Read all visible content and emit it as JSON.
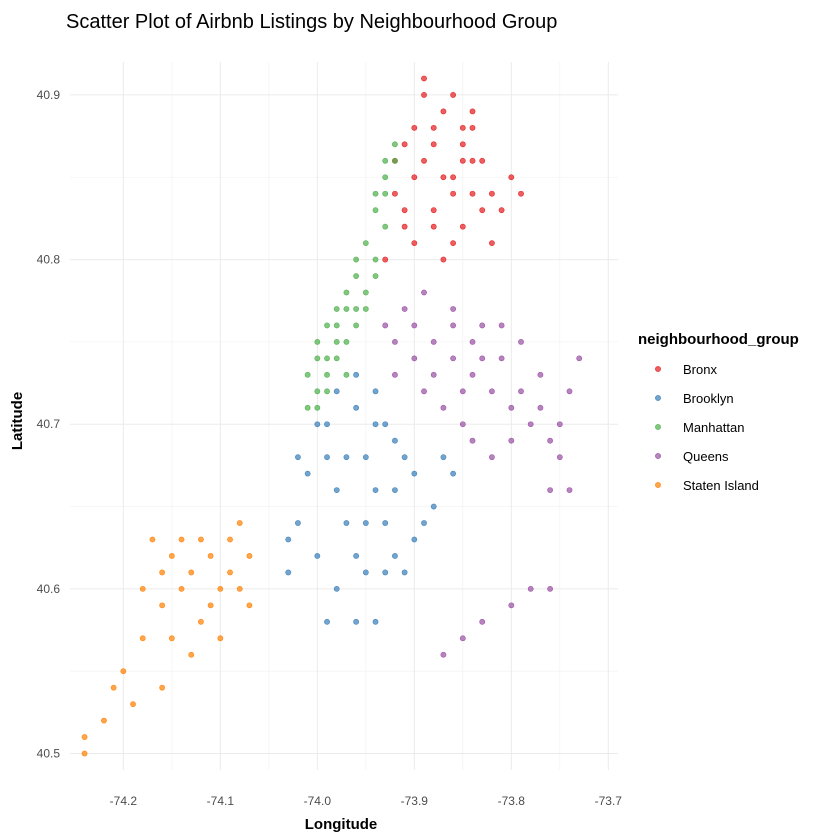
{
  "chart_data": {
    "type": "scatter",
    "title": "Scatter Plot of Airbnb Listings by Neighbourhood Group",
    "xlabel": "Longitude",
    "ylabel": "Latitude",
    "xlim": [
      -74.255,
      -73.69
    ],
    "ylim": [
      40.49,
      40.92
    ],
    "x_ticks": [
      -74.2,
      -74.1,
      -74.0,
      -73.9,
      -73.8,
      -73.7
    ],
    "x_tick_labels": [
      "-74.2",
      "-74.1",
      "-74.0",
      "-73.9",
      "-73.8",
      "-73.7"
    ],
    "y_ticks": [
      40.5,
      40.6,
      40.7,
      40.8,
      40.9
    ],
    "y_tick_labels": [
      "40.5",
      "40.6",
      "40.7",
      "40.8",
      "40.9"
    ],
    "grid": true,
    "legend": {
      "title": "neighbourhood_group",
      "position": "right"
    },
    "series": [
      {
        "name": "Bronx",
        "color": "#e41a1c",
        "points": [
          [
            -73.91,
            40.82
          ],
          [
            -73.9,
            40.85
          ],
          [
            -73.88,
            40.87
          ],
          [
            -73.87,
            40.89
          ],
          [
            -73.86,
            40.84
          ],
          [
            -73.85,
            40.88
          ],
          [
            -73.84,
            40.86
          ],
          [
            -73.83,
            40.83
          ],
          [
            -73.82,
            40.81
          ],
          [
            -73.89,
            40.9
          ],
          [
            -73.89,
            40.91
          ],
          [
            -73.86,
            40.9
          ],
          [
            -73.92,
            40.84
          ],
          [
            -73.91,
            40.87
          ],
          [
            -73.88,
            40.83
          ],
          [
            -73.85,
            40.82
          ],
          [
            -73.84,
            40.89
          ],
          [
            -73.83,
            40.86
          ],
          [
            -73.87,
            40.8
          ],
          [
            -73.9,
            40.81
          ],
          [
            -73.93,
            40.8
          ],
          [
            -73.92,
            40.86
          ],
          [
            -73.86,
            40.85
          ],
          [
            -73.85,
            40.87
          ],
          [
            -73.81,
            40.83
          ],
          [
            -73.8,
            40.85
          ],
          [
            -73.79,
            40.84
          ],
          [
            -73.88,
            40.88
          ],
          [
            -73.9,
            40.88
          ],
          [
            -73.84,
            40.88
          ],
          [
            -73.85,
            40.86
          ],
          [
            -73.89,
            40.86
          ],
          [
            -73.87,
            40.85
          ],
          [
            -73.88,
            40.82
          ],
          [
            -73.86,
            40.81
          ],
          [
            -73.82,
            40.84
          ],
          [
            -73.84,
            40.84
          ],
          [
            -73.91,
            40.83
          ]
        ]
      },
      {
        "name": "Brooklyn",
        "color": "#377eb8",
        "points": [
          [
            -74.0,
            40.7
          ],
          [
            -73.98,
            40.72
          ],
          [
            -73.96,
            40.71
          ],
          [
            -73.95,
            40.68
          ],
          [
            -73.94,
            40.66
          ],
          [
            -73.93,
            40.7
          ],
          [
            -73.92,
            40.69
          ],
          [
            -73.91,
            40.68
          ],
          [
            -73.9,
            40.67
          ],
          [
            -73.97,
            40.68
          ],
          [
            -73.99,
            40.68
          ],
          [
            -74.01,
            40.67
          ],
          [
            -74.02,
            40.64
          ],
          [
            -74.0,
            40.62
          ],
          [
            -73.98,
            40.6
          ],
          [
            -73.96,
            40.58
          ],
          [
            -73.95,
            40.61
          ],
          [
            -73.97,
            40.64
          ],
          [
            -73.95,
            40.64
          ],
          [
            -73.93,
            40.64
          ],
          [
            -73.92,
            40.62
          ],
          [
            -73.9,
            40.63
          ],
          [
            -73.88,
            40.65
          ],
          [
            -73.86,
            40.67
          ],
          [
            -73.87,
            40.68
          ],
          [
            -74.03,
            40.63
          ],
          [
            -74.03,
            40.61
          ],
          [
            -73.99,
            40.58
          ],
          [
            -73.94,
            40.72
          ],
          [
            -73.96,
            40.73
          ],
          [
            -73.94,
            40.7
          ],
          [
            -73.98,
            40.66
          ],
          [
            -73.99,
            40.7
          ],
          [
            -73.92,
            40.66
          ],
          [
            -73.89,
            40.64
          ],
          [
            -74.02,
            40.68
          ],
          [
            -73.96,
            40.62
          ],
          [
            -73.94,
            40.58
          ],
          [
            -73.91,
            40.61
          ],
          [
            -73.93,
            40.61
          ]
        ]
      },
      {
        "name": "Manhattan",
        "color": "#4daf4a",
        "points": [
          [
            -74.01,
            40.71
          ],
          [
            -74.0,
            40.72
          ],
          [
            -73.99,
            40.73
          ],
          [
            -73.98,
            40.74
          ],
          [
            -73.97,
            40.75
          ],
          [
            -73.96,
            40.77
          ],
          [
            -73.95,
            40.78
          ],
          [
            -73.94,
            40.8
          ],
          [
            -73.93,
            40.82
          ],
          [
            -73.93,
            40.85
          ],
          [
            -73.92,
            40.87
          ],
          [
            -74.0,
            40.75
          ],
          [
            -73.99,
            40.76
          ],
          [
            -73.98,
            40.77
          ],
          [
            -73.96,
            40.79
          ],
          [
            -73.95,
            40.81
          ],
          [
            -74.0,
            40.74
          ],
          [
            -73.98,
            40.76
          ],
          [
            -73.97,
            40.78
          ],
          [
            -73.94,
            40.83
          ],
          [
            -74.01,
            40.73
          ],
          [
            -73.99,
            40.72
          ],
          [
            -73.97,
            40.73
          ],
          [
            -73.96,
            40.76
          ],
          [
            -73.95,
            40.77
          ],
          [
            -73.94,
            40.79
          ],
          [
            -73.93,
            40.84
          ],
          [
            -73.92,
            40.86
          ],
          [
            -74.0,
            40.71
          ],
          [
            -73.99,
            40.74
          ],
          [
            -73.98,
            40.75
          ],
          [
            -73.97,
            40.77
          ],
          [
            -73.96,
            40.8
          ],
          [
            -73.94,
            40.84
          ],
          [
            -73.93,
            40.86
          ]
        ]
      },
      {
        "name": "Queens",
        "color": "#984ea3",
        "points": [
          [
            -73.93,
            40.76
          ],
          [
            -73.92,
            40.75
          ],
          [
            -73.9,
            40.74
          ],
          [
            -73.88,
            40.75
          ],
          [
            -73.86,
            40.74
          ],
          [
            -73.84,
            40.73
          ],
          [
            -73.82,
            40.72
          ],
          [
            -73.8,
            40.71
          ],
          [
            -73.78,
            40.7
          ],
          [
            -73.76,
            40.69
          ],
          [
            -73.75,
            40.68
          ],
          [
            -73.74,
            40.72
          ],
          [
            -73.73,
            40.74
          ],
          [
            -73.77,
            40.73
          ],
          [
            -73.79,
            40.75
          ],
          [
            -73.83,
            40.76
          ],
          [
            -73.85,
            40.7
          ],
          [
            -73.87,
            40.71
          ],
          [
            -73.89,
            40.72
          ],
          [
            -73.91,
            40.77
          ],
          [
            -73.89,
            40.78
          ],
          [
            -73.86,
            40.77
          ],
          [
            -73.81,
            40.76
          ],
          [
            -73.8,
            40.69
          ],
          [
            -73.82,
            40.68
          ],
          [
            -73.84,
            40.69
          ],
          [
            -73.76,
            40.66
          ],
          [
            -73.74,
            40.66
          ],
          [
            -73.8,
            40.59
          ],
          [
            -73.78,
            40.6
          ],
          [
            -73.76,
            40.6
          ],
          [
            -73.83,
            40.58
          ],
          [
            -73.85,
            40.57
          ],
          [
            -73.87,
            40.56
          ],
          [
            -73.85,
            40.72
          ],
          [
            -73.88,
            40.73
          ],
          [
            -73.84,
            40.75
          ],
          [
            -73.79,
            40.72
          ],
          [
            -73.77,
            40.71
          ],
          [
            -73.75,
            40.7
          ],
          [
            -73.81,
            40.74
          ],
          [
            -73.83,
            40.74
          ],
          [
            -73.86,
            40.76
          ],
          [
            -73.9,
            40.76
          ],
          [
            -73.92,
            40.73
          ]
        ]
      },
      {
        "name": "Staten Island",
        "color": "#ff7f00",
        "points": [
          [
            -74.08,
            40.64
          ],
          [
            -74.09,
            40.63
          ],
          [
            -74.07,
            40.62
          ],
          [
            -74.09,
            40.61
          ],
          [
            -74.1,
            40.6
          ],
          [
            -74.08,
            40.6
          ],
          [
            -74.07,
            40.59
          ],
          [
            -74.11,
            40.62
          ],
          [
            -74.12,
            40.63
          ],
          [
            -74.14,
            40.63
          ],
          [
            -74.15,
            40.62
          ],
          [
            -74.17,
            40.63
          ],
          [
            -74.16,
            40.61
          ],
          [
            -74.14,
            40.6
          ],
          [
            -74.12,
            40.58
          ],
          [
            -74.15,
            40.57
          ],
          [
            -74.18,
            40.57
          ],
          [
            -74.2,
            40.55
          ],
          [
            -74.19,
            40.53
          ],
          [
            -74.22,
            40.52
          ],
          [
            -74.24,
            40.51
          ],
          [
            -74.24,
            40.5
          ],
          [
            -74.16,
            40.54
          ],
          [
            -74.13,
            40.56
          ],
          [
            -74.1,
            40.57
          ],
          [
            -74.11,
            40.59
          ],
          [
            -74.13,
            40.61
          ],
          [
            -74.16,
            40.59
          ],
          [
            -74.18,
            40.6
          ],
          [
            -74.21,
            40.54
          ]
        ]
      }
    ]
  }
}
